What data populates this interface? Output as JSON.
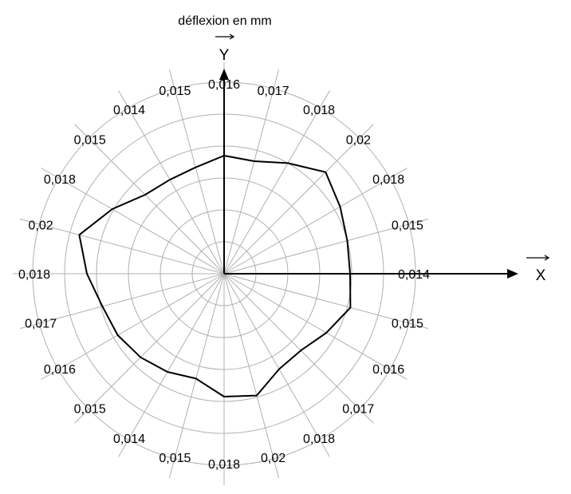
{
  "chart_data": {
    "type": "polar-line",
    "title": "déflexion en mm",
    "axis_x_label": "X",
    "axis_y_label": "Y",
    "angle_step_deg": 15,
    "grid": true,
    "rings": 6,
    "labels": [
      {
        "angle_deg": 0,
        "text": "0,014"
      },
      {
        "angle_deg": 15,
        "text": "0,015"
      },
      {
        "angle_deg": 30,
        "text": "0,018"
      },
      {
        "angle_deg": 45,
        "text": "0,02"
      },
      {
        "angle_deg": 60,
        "text": "0,018"
      },
      {
        "angle_deg": 75,
        "text": "0,017"
      },
      {
        "angle_deg": 90,
        "text": "0,016"
      },
      {
        "angle_deg": 105,
        "text": "0,015"
      },
      {
        "angle_deg": 120,
        "text": "0,014"
      },
      {
        "angle_deg": 135,
        "text": "0,015"
      },
      {
        "angle_deg": 150,
        "text": "0,018"
      },
      {
        "angle_deg": 165,
        "text": "0,02"
      },
      {
        "angle_deg": 180,
        "text": "0,018"
      },
      {
        "angle_deg": 195,
        "text": "0,017"
      },
      {
        "angle_deg": 210,
        "text": "0,016"
      },
      {
        "angle_deg": 225,
        "text": "0,015"
      },
      {
        "angle_deg": 240,
        "text": "0,014"
      },
      {
        "angle_deg": 255,
        "text": "0,015"
      },
      {
        "angle_deg": 270,
        "text": "0,018"
      },
      {
        "angle_deg": 285,
        "text": "0,02"
      },
      {
        "angle_deg": 300,
        "text": "0,018"
      },
      {
        "angle_deg": 315,
        "text": "0,017"
      },
      {
        "angle_deg": 330,
        "text": "0,016"
      },
      {
        "angle_deg": 345,
        "text": "0,015"
      }
    ],
    "curve_angle_deg": [
      0,
      15,
      30,
      45,
      60,
      75,
      90,
      105,
      120,
      135,
      150,
      165,
      180,
      195,
      210,
      225,
      240,
      255,
      270,
      285,
      300,
      315,
      330,
      345
    ],
    "curve_radius_rel": [
      0.79,
      0.8,
      0.84,
      0.9,
      0.8,
      0.73,
      0.74,
      0.69,
      0.68,
      0.7,
      0.81,
      0.94,
      0.86,
      0.79,
      0.77,
      0.74,
      0.71,
      0.68,
      0.77,
      0.79,
      0.69,
      0.68,
      0.74,
      0.82
    ],
    "radius_full_scale": 200
  }
}
